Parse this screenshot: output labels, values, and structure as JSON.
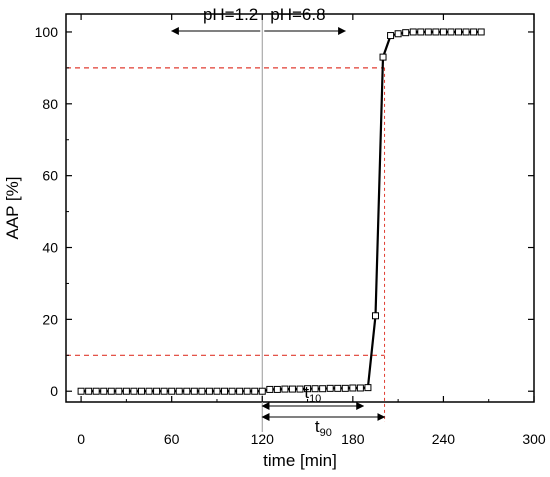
{
  "chart_data": {
    "type": "line",
    "xlabel": "time [min]",
    "ylabel": "AAP [%]",
    "xlim": [
      -10,
      300
    ],
    "ylim": [
      -3,
      105
    ],
    "xticks": [
      "0",
      "60",
      "120",
      "180",
      "240",
      "300"
    ],
    "yticks": [
      "0",
      "20",
      "40",
      "60",
      "80",
      "100"
    ],
    "grid": false,
    "series": [
      {
        "marker": "open-square",
        "x": [
          0,
          5,
          10,
          15,
          20,
          25,
          30,
          35,
          40,
          45,
          50,
          55,
          60,
          65,
          70,
          75,
          80,
          85,
          90,
          95,
          100,
          105,
          110,
          115,
          120,
          125,
          130,
          135,
          140,
          145,
          150,
          155,
          160,
          165,
          170,
          175,
          180,
          185,
          190,
          195,
          200,
          205,
          210,
          215,
          220,
          225,
          230,
          235,
          240,
          245,
          250,
          255,
          260,
          265
        ],
        "y": [
          0,
          0,
          0,
          0,
          0,
          0,
          0,
          0,
          0,
          0,
          0,
          0,
          0,
          0,
          0,
          0,
          0,
          0,
          0,
          0,
          0,
          0,
          0,
          0,
          0,
          0.5,
          0.5,
          0.6,
          0.6,
          0.6,
          0.7,
          0.7,
          0.7,
          0.8,
          0.8,
          0.8,
          0.9,
          0.9,
          1,
          21,
          93,
          99,
          99.5,
          99.8,
          100,
          100,
          100,
          100,
          100,
          100,
          100,
          100,
          100,
          100
        ]
      }
    ],
    "reference_lines": {
      "horizontal": [
        10,
        90
      ],
      "vertical_red": [
        201
      ],
      "vertical_gray": [
        120
      ],
      "color": "#e03c31"
    },
    "annotations": {
      "ph_left": "pH=1.2",
      "ph_right": "pH=6.8",
      "ph_arrow_range": [
        60,
        175
      ],
      "t10": {
        "base": "t",
        "sub": "10",
        "range": [
          120,
          187
        ]
      },
      "t90": {
        "base": "t",
        "sub": "90",
        "range": [
          120,
          201
        ]
      }
    }
  }
}
